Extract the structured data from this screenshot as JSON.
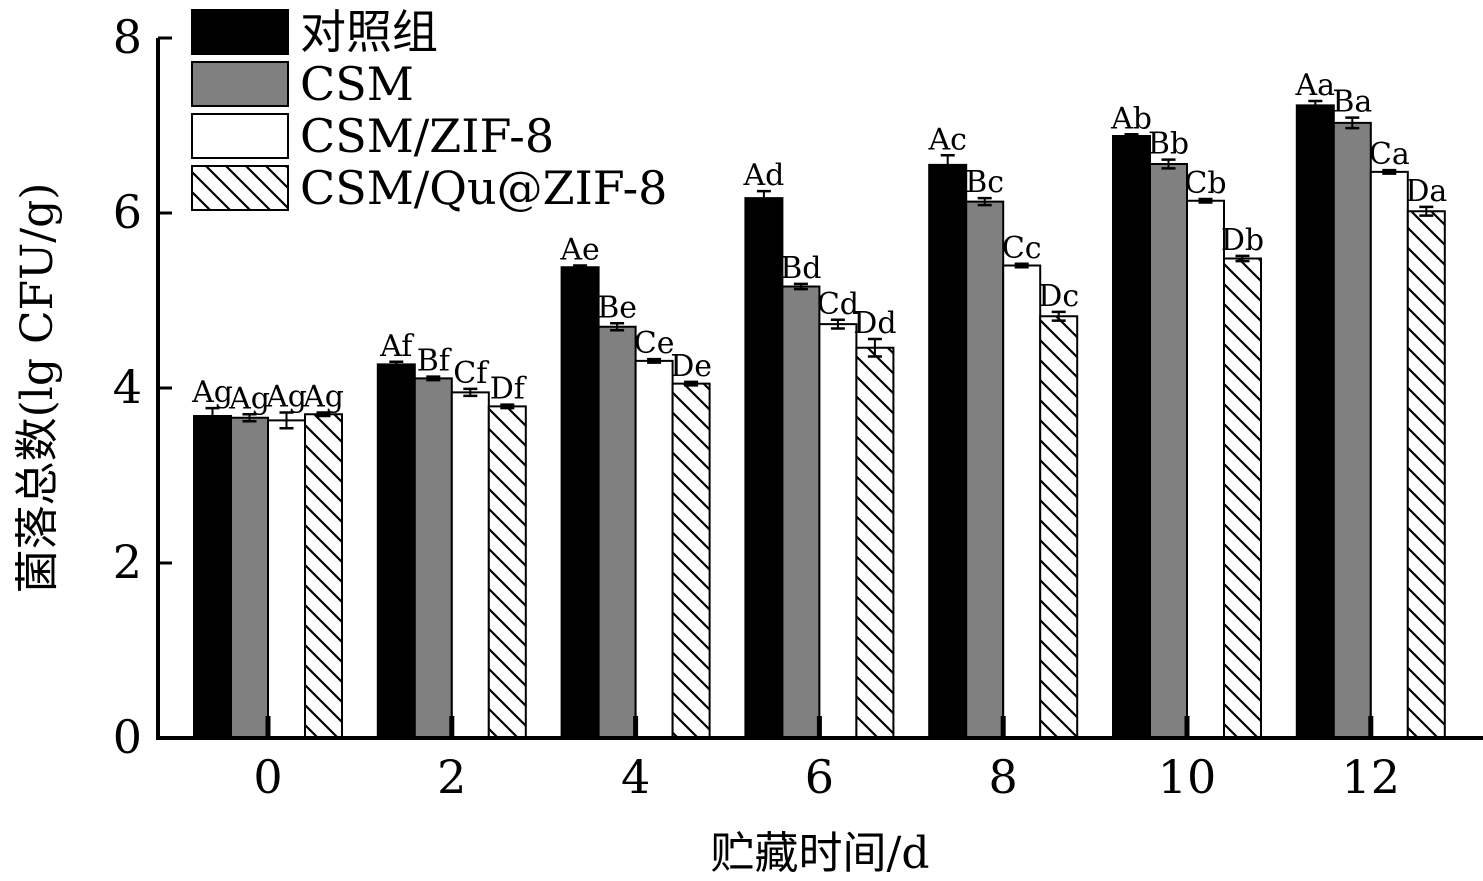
{
  "chart_data": {
    "type": "bar",
    "xlabel": "贮藏时间/d",
    "ylabel": "菌落总数(lg CFU/g)",
    "categories": [
      "0",
      "2",
      "4",
      "6",
      "8",
      "10",
      "12"
    ],
    "ylim": [
      0,
      8
    ],
    "yticks": [
      "0",
      "2",
      "4",
      "6",
      "8"
    ],
    "grid": false,
    "legend_position": "top-left",
    "series": [
      {
        "name": "对照组",
        "fill": "#000000",
        "pattern": "solid",
        "values": [
          3.68,
          4.27,
          5.38,
          6.17,
          6.55,
          6.88,
          7.23
        ],
        "errors": [
          0.09,
          0.03,
          0.02,
          0.08,
          0.11,
          0.02,
          0.05
        ],
        "labels": [
          "Ag",
          "Af",
          "Ae",
          "Ad",
          "Ac",
          "Ab",
          "Aa"
        ]
      },
      {
        "name": "CSM",
        "fill": "#808080",
        "pattern": "solid",
        "values": [
          3.66,
          4.11,
          4.7,
          5.16,
          6.13,
          6.56,
          7.03
        ],
        "errors": [
          0.04,
          0.02,
          0.04,
          0.03,
          0.04,
          0.05,
          0.06
        ],
        "labels": [
          "Ag",
          "Bf",
          "Be",
          "Bd",
          "Bc",
          "Bb",
          "Ba"
        ]
      },
      {
        "name": "CSM/ZIF-8",
        "fill": "#ffffff",
        "pattern": "solid",
        "values": [
          3.63,
          3.95,
          4.31,
          4.73,
          5.4,
          6.14,
          6.47
        ],
        "errors": [
          0.09,
          0.04,
          0.02,
          0.05,
          0.02,
          0.02,
          0.02
        ],
        "labels": [
          "Ag",
          "Cf",
          "Ce",
          "Cd",
          "Cc",
          "Cb",
          "Ca"
        ]
      },
      {
        "name": "CSM/Qu@ZIF-8",
        "fill": "#ffffff",
        "pattern": "hatch",
        "values": [
          3.7,
          3.79,
          4.05,
          4.46,
          4.82,
          5.48,
          6.02
        ],
        "errors": [
          0.02,
          0.02,
          0.02,
          0.1,
          0.05,
          0.03,
          0.05
        ],
        "labels": [
          "Ag",
          "Df",
          "De",
          "Dd",
          "Dc",
          "Db",
          "Da"
        ]
      }
    ]
  }
}
